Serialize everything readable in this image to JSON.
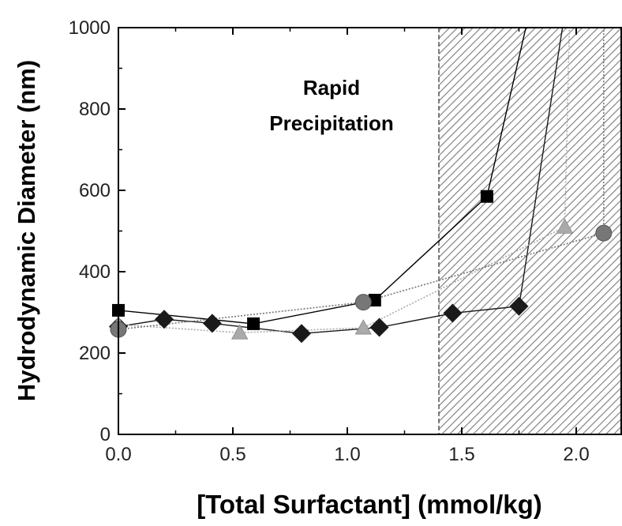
{
  "chart_data": {
    "type": "line",
    "title": "",
    "xlabel": "[Total Surfactant] (mmol/kg)",
    "ylabel": "Hydrodynamic Diameter (nm)",
    "xlim": [
      0.0,
      2.2
    ],
    "ylim": [
      0,
      1000
    ],
    "x_ticks": [
      "0.0",
      "0.5",
      "1.0",
      "1.5",
      "2.0"
    ],
    "y_ticks": [
      "0",
      "200",
      "400",
      "600",
      "800",
      "1000"
    ],
    "grid": false,
    "legend": "none",
    "annotation": {
      "line1": "Rapid",
      "line2": "Precipitation"
    },
    "shaded_region": {
      "x_start": 1.4,
      "x_end": 2.2,
      "pattern": "diagonal-hatch"
    },
    "series": [
      {
        "marker": "square",
        "color": "#000000",
        "line_style": "solid",
        "points": [
          [
            0.0,
            305
          ],
          [
            0.59,
            272
          ],
          [
            1.12,
            330
          ],
          [
            1.61,
            585
          ],
          [
            1.78,
            1000
          ]
        ]
      },
      {
        "marker": "diamond",
        "color": "#1a1a1a",
        "line_style": "solid",
        "points": [
          [
            0.0,
            265
          ],
          [
            0.2,
            283
          ],
          [
            0.41,
            273
          ],
          [
            0.8,
            248
          ],
          [
            1.14,
            263
          ],
          [
            1.46,
            298
          ],
          [
            1.75,
            315
          ],
          [
            1.94,
            1000
          ]
        ]
      },
      {
        "marker": "triangle",
        "color": "#aaaaaa",
        "line_style": "dotted",
        "points": [
          [
            0.0,
            270
          ],
          [
            0.53,
            250
          ],
          [
            1.07,
            262
          ],
          [
            1.95,
            510
          ],
          [
            1.97,
            1000
          ]
        ]
      },
      {
        "marker": "circle",
        "color": "#777777",
        "line_style": "dotted",
        "points": [
          [
            0.0,
            258
          ],
          [
            1.07,
            325
          ],
          [
            2.12,
            495
          ],
          [
            2.12,
            1000
          ]
        ]
      }
    ]
  }
}
